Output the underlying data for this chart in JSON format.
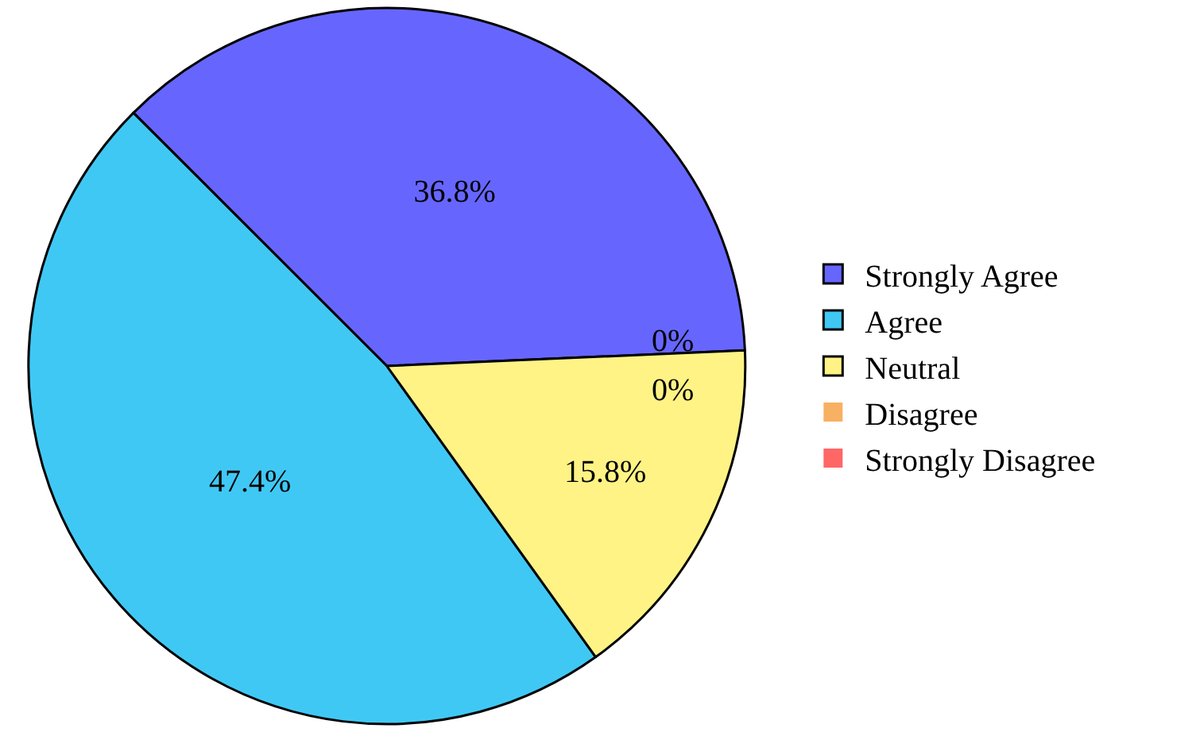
{
  "chart_data": {
    "type": "pie",
    "categories": [
      "Strongly Agree",
      "Agree",
      "Neutral",
      "Disagree",
      "Strongly Disagree"
    ],
    "values": [
      36.8,
      47.4,
      15.8,
      0,
      0
    ],
    "colors": [
      "#6666ff",
      "#40c8f4",
      "#fff385",
      "#f8b062",
      "#ff6666"
    ],
    "value_labels": [
      "36.8%",
      "47.4%",
      "15.8%",
      "0%",
      "0%"
    ],
    "legend": "right"
  }
}
